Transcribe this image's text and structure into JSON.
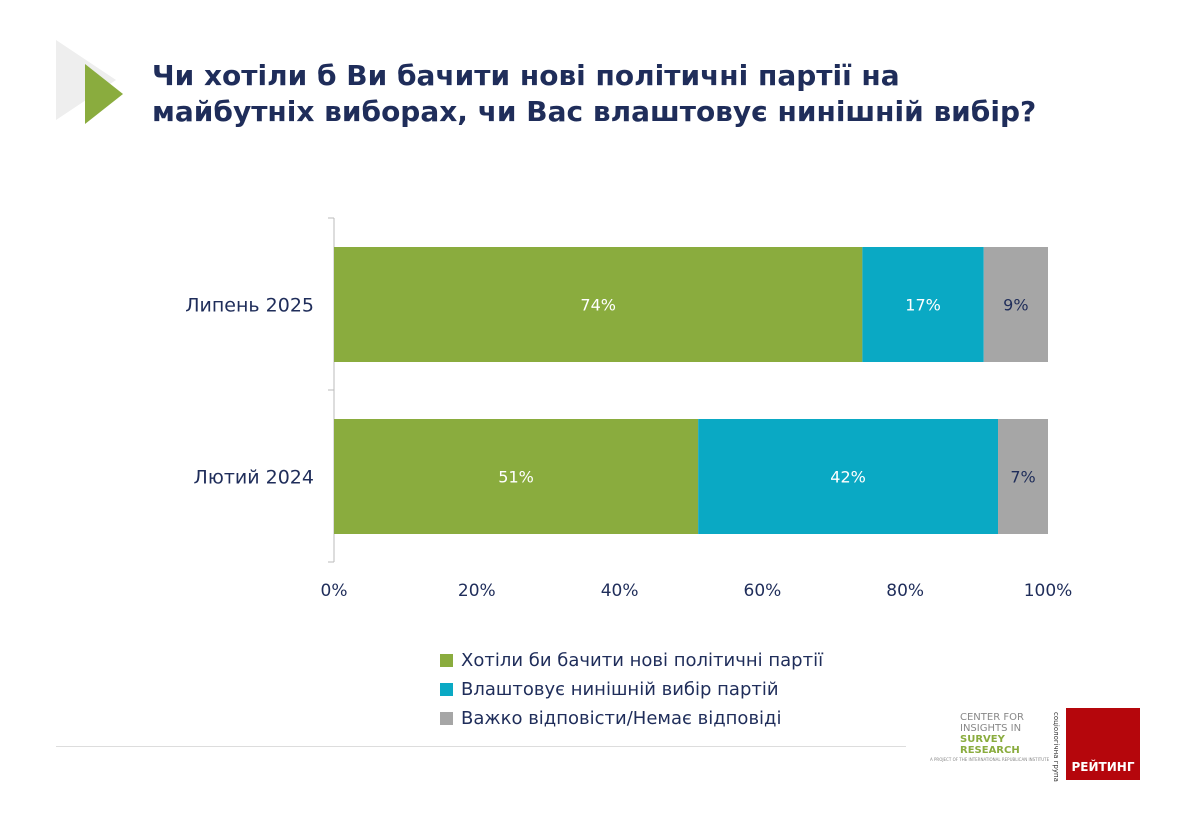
{
  "title_lines": [
    "Чи хотіли б Ви бачити нові політичні партії на",
    "майбутніх виборах, чи Вас влаштовує нинішній вибір?"
  ],
  "colors": {
    "green": "#8aac3e",
    "teal": "#0aa9c4",
    "gray": "#a6a6a6",
    "text": "#1f2d5a"
  },
  "chart_data": {
    "type": "bar",
    "orientation": "horizontal",
    "stacked": true,
    "title": "Чи хотіли б Ви бачити нові політичні партії на майбутніх виборах, чи Вас влаштовує нинішній вибір?",
    "categories": [
      "Липень 2025",
      "Лютий 2024"
    ],
    "series": [
      {
        "name": "Хотіли би бачити нові політичні партії",
        "color": "#8aac3e",
        "values": [
          74,
          51
        ]
      },
      {
        "name": "Влаштовує нинішній вибір партій",
        "color": "#0aa9c4",
        "values": [
          17,
          42
        ]
      },
      {
        "name": "Важко відповісти/Немає відповіді",
        "color": "#a6a6a6",
        "values": [
          9,
          7
        ]
      }
    ],
    "xlim": [
      0,
      100
    ],
    "xticks": [
      "0%",
      "20%",
      "40%",
      "60%",
      "80%",
      "100%"
    ],
    "legend_position": "bottom"
  },
  "logos": {
    "cisr": [
      "CENTER FOR",
      "INSIGHTS IN",
      "SURVEY",
      "RESEARCH"
    ],
    "cisr_sub": "A PROJECT OF THE INTERNATIONAL REPUBLICAN INSTITUTE",
    "rating": "РЕЙТИНГ",
    "rating_side": "соціологічна група"
  }
}
